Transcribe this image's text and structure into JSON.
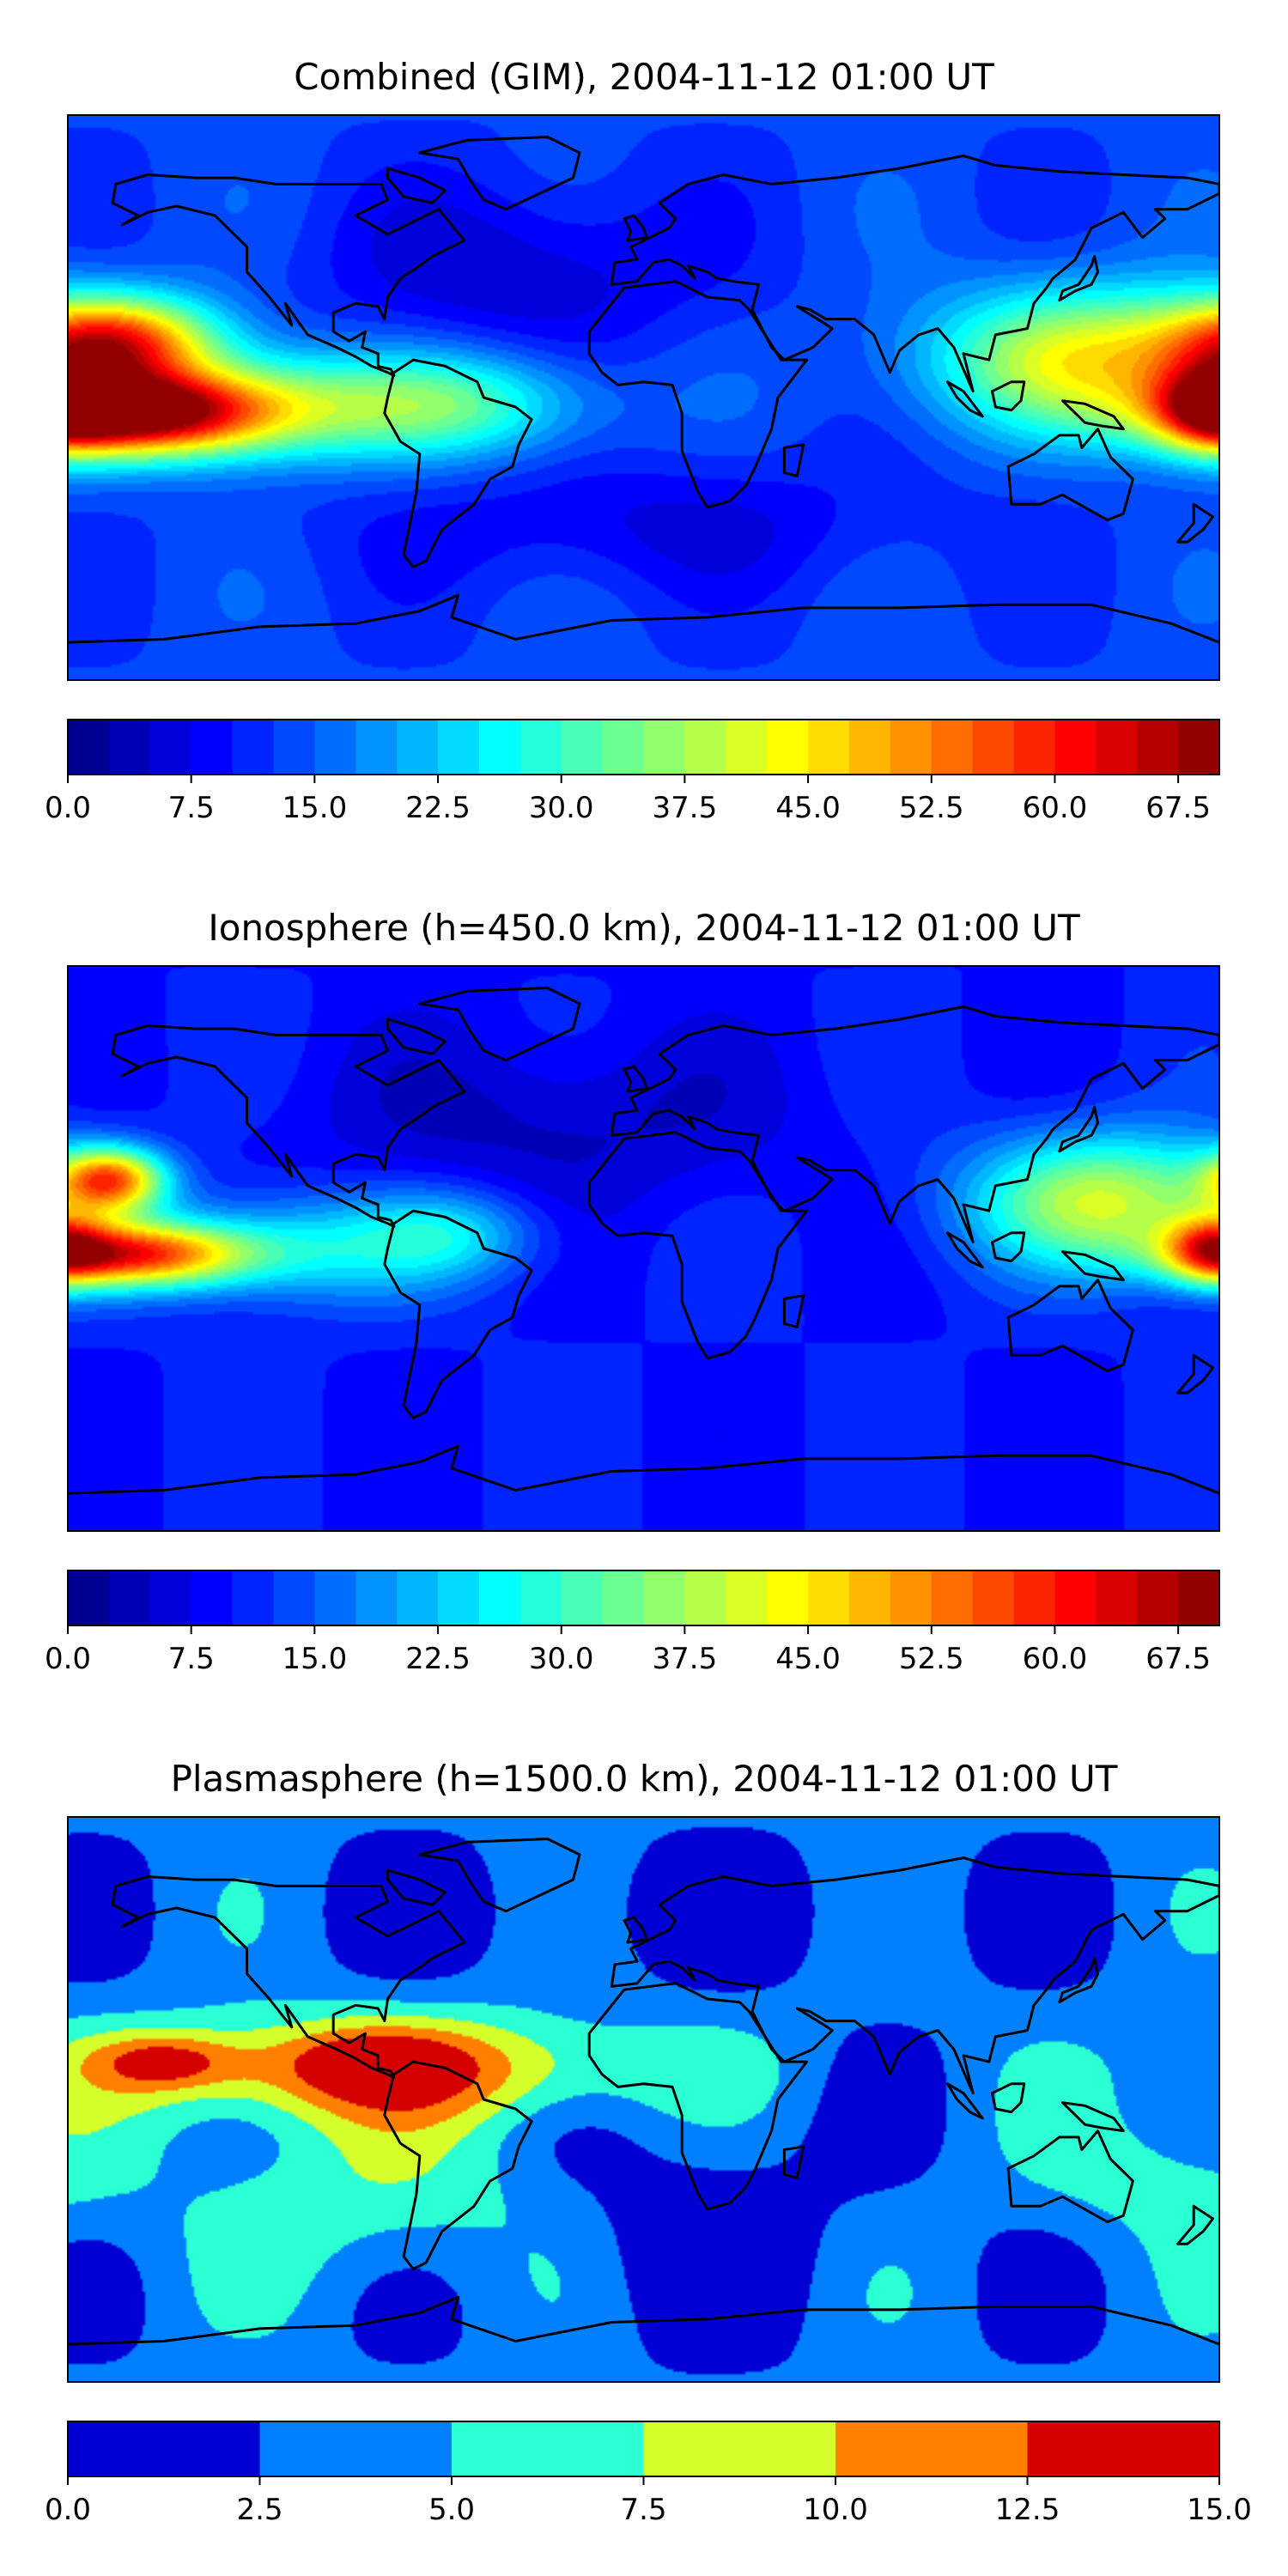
{
  "panels": [
    {
      "title": "Combined (GIM), 2004-11-12 01:00 UT",
      "colorbar": {
        "vmin": 0,
        "vmax": 70,
        "levels": 28,
        "ticks": [
          "0.0",
          "7.5",
          "15.0",
          "22.5",
          "30.0",
          "37.5",
          "45.0",
          "52.5",
          "60.0",
          "67.5"
        ],
        "tick_values": [
          0,
          7.5,
          15,
          22.5,
          30,
          37.5,
          45,
          52.5,
          60,
          67.5
        ]
      },
      "background_value": 13,
      "blobs": [
        {
          "lon": -165,
          "lat": 18,
          "amp": 40,
          "sx": 22,
          "sy": 10
        },
        {
          "lon": -160,
          "lat": -5,
          "amp": 50,
          "sx": 28,
          "sy": 9
        },
        {
          "lon": -120,
          "lat": -3,
          "amp": 22,
          "sx": 35,
          "sy": 12
        },
        {
          "lon": -55,
          "lat": -2,
          "amp": 17,
          "sx": 28,
          "sy": 12
        },
        {
          "lon": 140,
          "lat": 12,
          "amp": 30,
          "sx": 35,
          "sy": 16
        },
        {
          "lon": 178,
          "lat": -3,
          "amp": 25,
          "sx": 12,
          "sy": 10
        },
        {
          "lon": -40,
          "lat": 40,
          "amp": -8,
          "sx": 40,
          "sy": 20
        },
        {
          "lon": 0,
          "lat": -40,
          "amp": -6,
          "sx": 60,
          "sy": 15
        }
      ]
    },
    {
      "title": "Ionosphere  (h=450.0 km), 2004-11-12 01:00 UT",
      "colorbar": {
        "vmin": 0,
        "vmax": 70,
        "levels": 28,
        "ticks": [
          "0.0",
          "7.5",
          "15.0",
          "22.5",
          "30.0",
          "37.5",
          "45.0",
          "52.5",
          "60.0",
          "67.5"
        ],
        "tick_values": [
          0,
          7.5,
          15,
          22.5,
          30,
          37.5,
          45,
          52.5,
          60,
          67.5
        ]
      },
      "background_value": 10,
      "blobs": [
        {
          "lon": -167,
          "lat": 22,
          "amp": 40,
          "sx": 12,
          "sy": 7
        },
        {
          "lon": -160,
          "lat": -2,
          "amp": 42,
          "sx": 25,
          "sy": 7
        },
        {
          "lon": -110,
          "lat": 0,
          "amp": 15,
          "sx": 35,
          "sy": 12
        },
        {
          "lon": -60,
          "lat": 5,
          "amp": 12,
          "sx": 20,
          "sy": 10
        },
        {
          "lon": 145,
          "lat": 15,
          "amp": 30,
          "sx": 30,
          "sy": 15
        },
        {
          "lon": 178,
          "lat": 0,
          "amp": 25,
          "sx": 10,
          "sy": 8
        },
        {
          "lon": -30,
          "lat": 40,
          "amp": -6,
          "sx": 50,
          "sy": 20
        }
      ]
    },
    {
      "title": "Plasmasphere (h=1500.0 km), 2004-11-12 01:00 UT",
      "colorbar": {
        "vmin": 0,
        "vmax": 15,
        "levels": 6,
        "ticks": [
          "0.0",
          "2.5",
          "5.0",
          "7.5",
          "10.0",
          "12.5",
          "15.0"
        ],
        "tick_values": [
          0,
          2.5,
          5,
          7.5,
          10,
          12.5,
          15
        ]
      },
      "background_value": 3.2,
      "blobs": [
        {
          "lon": -85,
          "lat": 10,
          "amp": 10,
          "sx": 60,
          "sy": 12
        },
        {
          "lon": -85,
          "lat": 12,
          "amp": 3,
          "sx": 15,
          "sy": 6
        },
        {
          "lon": -150,
          "lat": 12,
          "amp": 6,
          "sx": 15,
          "sy": 6
        },
        {
          "lon": -80,
          "lat": -30,
          "amp": 4,
          "sx": 40,
          "sy": 20
        },
        {
          "lon": 10,
          "lat": -40,
          "amp": -2.5,
          "sx": 40,
          "sy": 25
        },
        {
          "lon": 160,
          "lat": -25,
          "amp": 3,
          "sx": 30,
          "sy": 15
        },
        {
          "lon": 0,
          "lat": 60,
          "amp": -1.5,
          "sx": 80,
          "sy": 15
        }
      ]
    }
  ]
}
